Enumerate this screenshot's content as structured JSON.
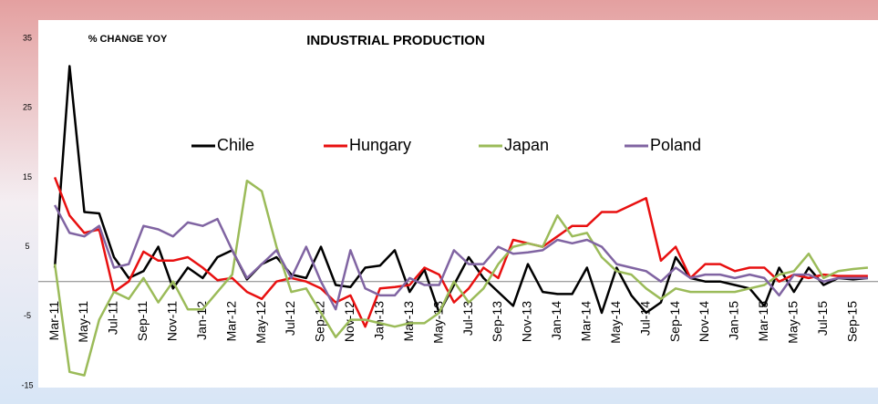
{
  "chart_data": {
    "type": "line",
    "title": "INDUSTRIAL PRODUCTION",
    "subtitle": "% CHANGE YOY",
    "categories": [
      "Mar-11",
      null,
      "May-11",
      null,
      "Jul-11",
      null,
      "Sep-11",
      null,
      "Nov-11",
      null,
      "Jan-12",
      null,
      "Mar-12",
      null,
      "May-12",
      null,
      "Jul-12",
      null,
      "Sep-12",
      null,
      "Nov-12",
      null,
      "Jan-13",
      null,
      "Mar-13",
      null,
      "May-13",
      null,
      "Jul-13",
      null,
      "Sep-13",
      null,
      "Nov-13",
      null,
      "Jan-14",
      null,
      "Mar-14",
      null,
      "May-14",
      null,
      "Jul-14",
      null,
      "Sep-14",
      null,
      "Nov-14",
      null,
      "Jan-15",
      null,
      "Mar-15",
      null,
      "May-15",
      null,
      "Jul-15",
      null,
      "Sep-15",
      null
    ],
    "series": [
      {
        "name": "Chile",
        "color": "#000000",
        "values": [
          2,
          31,
          10,
          9.8,
          3.5,
          0.5,
          1.5,
          5,
          -1,
          2,
          0.5,
          3.5,
          4.5,
          0.3,
          2.5,
          3.5,
          1,
          0.5,
          5,
          -0.5,
          -0.8,
          2,
          2.3,
          4.5,
          -1.5,
          1.7,
          -4.5,
          -0.5,
          3.5,
          0.5,
          -1.5,
          -3.5,
          2.5,
          -1.5,
          -1.8,
          -1.8,
          2,
          -4.5,
          2,
          -2,
          -4.5,
          -3,
          3.5,
          0.5,
          0,
          0,
          -0.5,
          -1,
          -3.5,
          2,
          -1.5,
          2,
          -0.5,
          0.5,
          0.3,
          0.5
        ]
      },
      {
        "name": "Hungary",
        "color": "#e81010",
        "values": [
          15,
          9.5,
          7,
          7.5,
          -1.5,
          0,
          4.3,
          3,
          3,
          3.5,
          2,
          0.2,
          0.5,
          -1.5,
          -2.5,
          0,
          0.5,
          0,
          -1,
          -3,
          -2,
          -6.5,
          -1,
          -0.8,
          -0.5,
          2,
          1,
          -3,
          -1,
          2,
          0.5,
          6,
          5.5,
          5,
          6.5,
          8,
          8,
          10,
          10,
          11,
          12,
          3,
          5,
          0.5,
          2.5,
          2.5,
          1.5,
          2,
          2,
          0,
          1,
          0.5,
          1,
          0.8,
          0.8,
          0.8
        ]
      },
      {
        "name": "Japan",
        "color": "#9bbb59",
        "values": [
          2.5,
          -13,
          -13.5,
          -5.5,
          -1.5,
          -2.5,
          0.5,
          -3,
          0,
          -4,
          -4,
          -1.5,
          1,
          14.5,
          13,
          5,
          -1.5,
          -1,
          -4.5,
          -8,
          -5.5,
          -5.5,
          -6,
          -6.5,
          -6,
          -6,
          -4.5,
          0,
          -3,
          -1,
          2.5,
          5,
          5.5,
          5,
          9.5,
          6.5,
          7,
          3.5,
          1.5,
          1,
          -1,
          -2.5,
          -1,
          -1.5,
          -1.5,
          -1.5,
          -1.5,
          -1,
          -0.5,
          1,
          1.5,
          4,
          0.5,
          1.5,
          1.8,
          2
        ]
      },
      {
        "name": "Poland",
        "color": "#8064a2",
        "values": [
          11,
          7,
          6.5,
          8,
          2,
          2.5,
          8,
          7.5,
          6.5,
          8.5,
          8,
          9,
          4.5,
          0.5,
          2.5,
          4.5,
          0.5,
          5,
          0,
          -4,
          4.5,
          -1,
          -2,
          -2,
          0.5,
          -0.5,
          -0.5,
          4.5,
          2.5,
          2.5,
          5,
          4,
          4.2,
          4.5,
          6,
          5.5,
          6,
          5,
          2.5,
          2,
          1.5,
          0,
          2,
          0.5,
          1,
          1,
          0.5,
          1,
          0.5,
          -2,
          1,
          1,
          0,
          0.5,
          0.5,
          0.5
        ]
      }
    ],
    "ylim": [
      -15,
      35
    ],
    "yticks": [
      -15,
      -5,
      5,
      15,
      25,
      35
    ],
    "legend": "top",
    "grid": false
  }
}
